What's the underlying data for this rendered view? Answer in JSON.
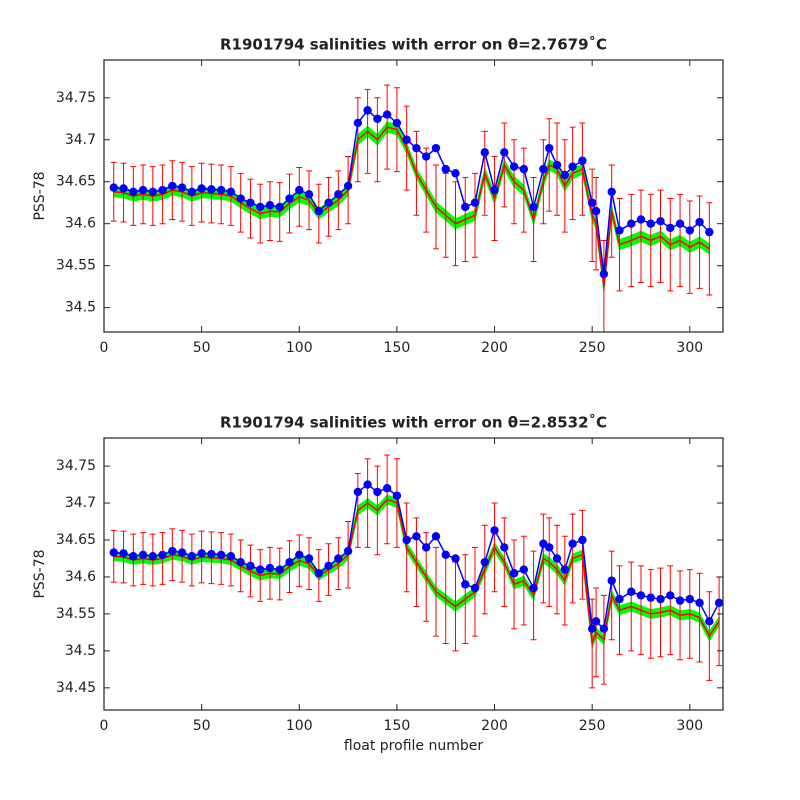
{
  "chart_data": [
    {
      "type": "errorbar",
      "title": "R1901794 salinities with error on θ=2.7679˚C",
      "ylabel": "PSS-78",
      "xlim": [
        0,
        317
      ],
      "xticks": [
        0,
        50,
        100,
        150,
        200,
        250,
        300
      ],
      "ylim": [
        34.471,
        34.795
      ],
      "yticks": [
        34.5,
        34.55,
        34.6,
        34.65,
        34.7,
        34.75
      ],
      "x": [
        5,
        10,
        15,
        20,
        25,
        30,
        35,
        40,
        45,
        50,
        55,
        60,
        65,
        70,
        75,
        80,
        85,
        90,
        95,
        100,
        105,
        110,
        115,
        120,
        125,
        130,
        135,
        140,
        145,
        150,
        155,
        160,
        165,
        170,
        175,
        180,
        185,
        190,
        195,
        200,
        205,
        210,
        215,
        220,
        225,
        228,
        232,
        236,
        240,
        245,
        250,
        252,
        256,
        260,
        264,
        270,
        275,
        280,
        285,
        290,
        295,
        300,
        305,
        310
      ],
      "series": [
        {
          "color": "#00ff00",
          "values": [
            34.638,
            34.637,
            34.633,
            34.635,
            34.633,
            34.635,
            34.64,
            34.638,
            34.633,
            34.637,
            34.636,
            34.635,
            34.633,
            34.625,
            34.618,
            34.612,
            34.615,
            34.614,
            34.624,
            34.632,
            34.628,
            34.612,
            34.62,
            34.628,
            34.64,
            34.7,
            34.71,
            34.7,
            34.715,
            34.712,
            34.69,
            34.66,
            34.64,
            34.62,
            34.61,
            34.6,
            34.605,
            34.61,
            34.66,
            34.63,
            34.67,
            34.65,
            34.64,
            34.605,
            34.65,
            34.67,
            34.665,
            34.645,
            34.66,
            34.665,
            34.61,
            34.6,
            34.525,
            34.615,
            34.575,
            34.58,
            34.585,
            34.58,
            34.585,
            34.575,
            34.58,
            34.572,
            34.578,
            34.57
          ],
          "errors": [
            0.006,
            0.006,
            0.006,
            0.006,
            0.006,
            0.006,
            0.006,
            0.006,
            0.006,
            0.006,
            0.006,
            0.006,
            0.006,
            0.006,
            0.006,
            0.006,
            0.006,
            0.006,
            0.006,
            0.006,
            0.006,
            0.006,
            0.006,
            0.006,
            0.006,
            0.006,
            0.006,
            0.006,
            0.006,
            0.006,
            0.006,
            0.006,
            0.006,
            0.006,
            0.006,
            0.006,
            0.006,
            0.006,
            0.006,
            0.006,
            0.006,
            0.006,
            0.006,
            0.006,
            0.006,
            0.006,
            0.006,
            0.006,
            0.006,
            0.006,
            0.006,
            0.006,
            0.006,
            0.006,
            0.006,
            0.006,
            0.006,
            0.006,
            0.006,
            0.006,
            0.006,
            0.006,
            0.006,
            0.006
          ]
        },
        {
          "color": "#ff0000",
          "values": [
            34.638,
            34.637,
            34.633,
            34.635,
            34.633,
            34.635,
            34.64,
            34.638,
            34.633,
            34.637,
            34.636,
            34.635,
            34.633,
            34.625,
            34.618,
            34.612,
            34.615,
            34.614,
            34.624,
            34.632,
            34.628,
            34.612,
            34.62,
            34.628,
            34.64,
            34.7,
            34.71,
            34.7,
            34.715,
            34.712,
            34.69,
            34.66,
            34.64,
            34.62,
            34.61,
            34.6,
            34.605,
            34.61,
            34.66,
            34.63,
            34.67,
            34.65,
            34.64,
            34.605,
            34.65,
            34.67,
            34.665,
            34.645,
            34.66,
            34.665,
            34.61,
            34.6,
            34.525,
            34.615,
            34.575,
            34.58,
            34.585,
            34.58,
            34.585,
            34.575,
            34.58,
            34.572,
            34.578,
            34.57
          ],
          "errors": [
            0.035,
            0.035,
            0.035,
            0.035,
            0.035,
            0.035,
            0.035,
            0.035,
            0.035,
            0.035,
            0.035,
            0.035,
            0.035,
            0.035,
            0.035,
            0.035,
            0.035,
            0.035,
            0.035,
            0.035,
            0.035,
            0.035,
            0.035,
            0.035,
            0.04,
            0.05,
            0.05,
            0.05,
            0.05,
            0.05,
            0.05,
            0.05,
            0.05,
            0.05,
            0.05,
            0.05,
            0.05,
            0.05,
            0.05,
            0.05,
            0.05,
            0.05,
            0.05,
            0.05,
            0.05,
            0.055,
            0.055,
            0.055,
            0.055,
            0.055,
            0.055,
            0.055,
            0.055,
            0.055,
            0.055,
            0.055,
            0.055,
            0.055,
            0.055,
            0.055,
            0.055,
            0.055,
            0.055,
            0.055
          ]
        },
        {
          "color": "#0000ff",
          "values": [
            34.643,
            34.642,
            34.638,
            34.64,
            34.638,
            34.64,
            34.645,
            34.643,
            34.638,
            34.642,
            34.641,
            34.64,
            34.638,
            34.63,
            34.625,
            34.62,
            34.622,
            34.62,
            34.63,
            34.64,
            34.635,
            34.615,
            34.625,
            34.635,
            34.645,
            34.72,
            34.735,
            34.725,
            34.73,
            34.72,
            34.7,
            34.69,
            34.68,
            34.69,
            34.665,
            34.66,
            34.62,
            34.625,
            34.685,
            34.64,
            34.685,
            34.668,
            34.665,
            34.62,
            34.665,
            34.69,
            34.67,
            34.658,
            34.668,
            34.675,
            34.625,
            34.615,
            34.54,
            34.638,
            34.592,
            34.6,
            34.605,
            34.6,
            34.603,
            34.595,
            34.6,
            34.592,
            34.602,
            34.59
          ]
        }
      ]
    },
    {
      "type": "errorbar",
      "title": "R1901794 salinities with error on θ=2.8532˚C",
      "ylabel": "PSS-78",
      "xlabel": "float profile number",
      "xlim": [
        0,
        317
      ],
      "xticks": [
        0,
        50,
        100,
        150,
        200,
        250,
        300
      ],
      "ylim": [
        34.42,
        34.788
      ],
      "yticks": [
        34.45,
        34.5,
        34.55,
        34.6,
        34.65,
        34.7,
        34.75
      ],
      "x": [
        5,
        10,
        15,
        20,
        25,
        30,
        35,
        40,
        45,
        50,
        55,
        60,
        65,
        70,
        75,
        80,
        85,
        90,
        95,
        100,
        105,
        110,
        115,
        120,
        125,
        130,
        135,
        140,
        145,
        150,
        155,
        160,
        165,
        170,
        175,
        180,
        185,
        190,
        195,
        200,
        205,
        210,
        215,
        220,
        225,
        228,
        232,
        236,
        240,
        245,
        250,
        252,
        256,
        260,
        264,
        270,
        275,
        280,
        285,
        290,
        295,
        300,
        305,
        310,
        315
      ],
      "series": [
        {
          "color": "#00ff00",
          "values": [
            34.628,
            34.627,
            34.623,
            34.625,
            34.623,
            34.625,
            34.63,
            34.628,
            34.623,
            34.627,
            34.626,
            34.625,
            34.623,
            34.615,
            34.608,
            34.602,
            34.605,
            34.604,
            34.614,
            34.622,
            34.618,
            34.602,
            34.61,
            34.618,
            34.63,
            34.69,
            34.7,
            34.69,
            34.705,
            34.7,
            34.64,
            34.62,
            34.6,
            34.58,
            34.57,
            34.56,
            34.57,
            34.58,
            34.61,
            34.64,
            34.62,
            34.59,
            34.595,
            34.575,
            34.625,
            34.62,
            34.61,
            34.595,
            34.625,
            34.63,
            34.51,
            34.525,
            34.515,
            34.575,
            34.555,
            34.56,
            34.555,
            34.55,
            34.552,
            34.555,
            34.548,
            34.55,
            34.545,
            34.52,
            34.54
          ],
          "errors": [
            0.006,
            0.006,
            0.006,
            0.006,
            0.006,
            0.006,
            0.006,
            0.006,
            0.006,
            0.006,
            0.006,
            0.006,
            0.006,
            0.006,
            0.006,
            0.006,
            0.006,
            0.006,
            0.006,
            0.006,
            0.006,
            0.006,
            0.006,
            0.006,
            0.006,
            0.006,
            0.006,
            0.006,
            0.006,
            0.006,
            0.006,
            0.006,
            0.006,
            0.006,
            0.006,
            0.006,
            0.006,
            0.006,
            0.006,
            0.006,
            0.006,
            0.006,
            0.006,
            0.006,
            0.006,
            0.006,
            0.006,
            0.006,
            0.006,
            0.006,
            0.006,
            0.006,
            0.006,
            0.006,
            0.006,
            0.006,
            0.006,
            0.006,
            0.006,
            0.006,
            0.006,
            0.006,
            0.006,
            0.006,
            0.006
          ]
        },
        {
          "color": "#ff0000",
          "values": [
            34.628,
            34.627,
            34.623,
            34.625,
            34.623,
            34.625,
            34.63,
            34.628,
            34.623,
            34.627,
            34.626,
            34.625,
            34.623,
            34.615,
            34.608,
            34.602,
            34.605,
            34.604,
            34.614,
            34.622,
            34.618,
            34.602,
            34.61,
            34.618,
            34.63,
            34.69,
            34.7,
            34.69,
            34.705,
            34.7,
            34.64,
            34.62,
            34.6,
            34.58,
            34.57,
            34.56,
            34.57,
            34.58,
            34.61,
            34.64,
            34.62,
            34.59,
            34.595,
            34.575,
            34.625,
            34.62,
            34.61,
            34.595,
            34.625,
            34.63,
            34.51,
            34.525,
            34.515,
            34.575,
            34.555,
            34.56,
            34.555,
            34.55,
            34.552,
            34.555,
            34.548,
            34.55,
            34.545,
            34.52,
            34.54
          ],
          "errors": [
            0.035,
            0.035,
            0.035,
            0.035,
            0.035,
            0.035,
            0.035,
            0.035,
            0.035,
            0.035,
            0.035,
            0.035,
            0.035,
            0.035,
            0.035,
            0.035,
            0.035,
            0.035,
            0.035,
            0.035,
            0.035,
            0.035,
            0.035,
            0.035,
            0.045,
            0.05,
            0.06,
            0.06,
            0.06,
            0.06,
            0.06,
            0.06,
            0.06,
            0.06,
            0.06,
            0.06,
            0.06,
            0.06,
            0.06,
            0.06,
            0.06,
            0.06,
            0.06,
            0.06,
            0.06,
            0.06,
            0.06,
            0.06,
            0.06,
            0.06,
            0.06,
            0.06,
            0.06,
            0.06,
            0.06,
            0.06,
            0.06,
            0.06,
            0.06,
            0.06,
            0.06,
            0.06,
            0.06,
            0.06,
            0.06
          ]
        },
        {
          "color": "#0000ff",
          "values": [
            34.633,
            34.632,
            34.628,
            34.63,
            34.628,
            34.63,
            34.635,
            34.633,
            34.628,
            34.632,
            34.631,
            34.63,
            34.628,
            34.62,
            34.615,
            34.61,
            34.612,
            34.61,
            34.62,
            34.63,
            34.625,
            34.605,
            34.615,
            34.625,
            34.635,
            34.715,
            34.725,
            34.715,
            34.72,
            34.71,
            34.65,
            34.655,
            34.64,
            34.655,
            34.63,
            34.625,
            34.59,
            34.585,
            34.62,
            34.663,
            34.64,
            34.605,
            34.61,
            34.585,
            34.645,
            34.64,
            34.625,
            34.61,
            34.645,
            34.65,
            34.53,
            34.54,
            34.53,
            34.595,
            34.57,
            34.58,
            34.575,
            34.572,
            34.57,
            34.575,
            34.568,
            34.57,
            34.565,
            34.54,
            34.565
          ]
        }
      ]
    }
  ]
}
